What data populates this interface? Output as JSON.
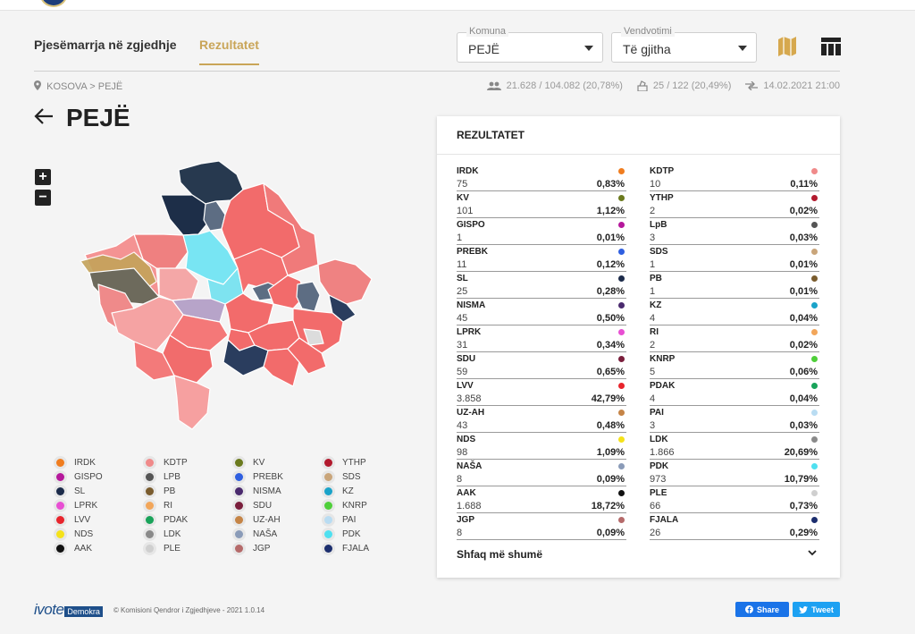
{
  "nav": {
    "tab_participation": "Pjesëmarrja në zgjedhje",
    "tab_results": "Rezultatet",
    "select_municipality": {
      "label": "Komuna",
      "value": "PEJË"
    },
    "select_polling": {
      "label": "Vendvotimi",
      "value": "Të gjitha"
    }
  },
  "breadcrumb": {
    "country": "KOSOVA",
    "separator": ">",
    "city": "PEJË"
  },
  "stats": {
    "voters": "21.628 / 104.082 (20,78%)",
    "stations": "25 / 122 (20,49%)",
    "updated": "14.02.2021 21:00"
  },
  "page": {
    "title": "PEJË"
  },
  "zoom": {
    "plus": "+",
    "minus": "−"
  },
  "legend": [
    {
      "name": "IRDK",
      "color": "#f07d1f"
    },
    {
      "name": "KDTP",
      "color": "#f08a8a"
    },
    {
      "name": "KV",
      "color": "#6b7a1e"
    },
    {
      "name": "YTHP",
      "color": "#b21a2e"
    },
    {
      "name": "GISPO",
      "color": "#b5189b"
    },
    {
      "name": "LPB",
      "color": "#555555"
    },
    {
      "name": "PREBK",
      "color": "#2f5fe0"
    },
    {
      "name": "SDS",
      "color": "#c9a57a"
    },
    {
      "name": "SL",
      "color": "#1c2b4a"
    },
    {
      "name": "PB",
      "color": "#7a5c2e"
    },
    {
      "name": "NISMA",
      "color": "#4a2a6e"
    },
    {
      "name": "KZ",
      "color": "#1aa3c9"
    },
    {
      "name": "LPRK",
      "color": "#e84fd3"
    },
    {
      "name": "RI",
      "color": "#f2a65a"
    },
    {
      "name": "SDU",
      "color": "#7a1e3c"
    },
    {
      "name": "KNRP",
      "color": "#4fcf3a"
    },
    {
      "name": "LVV",
      "color": "#e8242c"
    },
    {
      "name": "PDAK",
      "color": "#19a35a"
    },
    {
      "name": "UZ-AH",
      "color": "#c58446"
    },
    {
      "name": "PAI",
      "color": "#b9dcf2"
    },
    {
      "name": "NDS",
      "color": "#f5e21a"
    },
    {
      "name": "LDK",
      "color": "#8a8a8a"
    },
    {
      "name": "NAŠA",
      "color": "#8a9bb8"
    },
    {
      "name": "PDK",
      "color": "#4fe0f0"
    },
    {
      "name": "AAK",
      "color": "#111111"
    },
    {
      "name": "PLE",
      "color": "#cfcfcf"
    },
    {
      "name": "JGP",
      "color": "#b56a6a"
    },
    {
      "name": "FJALA",
      "color": "#1c2e6e"
    }
  ],
  "results": {
    "title": "REZULTATET",
    "left": [
      {
        "name": "IRDK",
        "votes": "75",
        "pct": "0,83%",
        "color": "#f07d1f"
      },
      {
        "name": "KV",
        "votes": "101",
        "pct": "1,12%",
        "color": "#6b7a1e"
      },
      {
        "name": "GISPO",
        "votes": "1",
        "pct": "0,01%",
        "color": "#b5189b"
      },
      {
        "name": "PREBK",
        "votes": "11",
        "pct": "0,12%",
        "color": "#2f5fe0"
      },
      {
        "name": "SL",
        "votes": "25",
        "pct": "0,28%",
        "color": "#1c2b4a"
      },
      {
        "name": "NISMA",
        "votes": "45",
        "pct": "0,50%",
        "color": "#4a2a6e"
      },
      {
        "name": "LPRK",
        "votes": "31",
        "pct": "0,34%",
        "color": "#e84fd3"
      },
      {
        "name": "SDU",
        "votes": "59",
        "pct": "0,65%",
        "color": "#7a1e3c"
      },
      {
        "name": "LVV",
        "votes": "3.858",
        "pct": "42,79%",
        "color": "#e8242c"
      },
      {
        "name": "UZ-AH",
        "votes": "43",
        "pct": "0,48%",
        "color": "#c58446"
      },
      {
        "name": "NDS",
        "votes": "98",
        "pct": "1,09%",
        "color": "#f5e21a"
      },
      {
        "name": "NAŠA",
        "votes": "8",
        "pct": "0,09%",
        "color": "#8a9bb8"
      },
      {
        "name": "AAK",
        "votes": "1.688",
        "pct": "18,72%",
        "color": "#111111"
      },
      {
        "name": "JGP",
        "votes": "8",
        "pct": "0,09%",
        "color": "#b56a6a"
      }
    ],
    "right": [
      {
        "name": "KDTP",
        "votes": "10",
        "pct": "0,11%",
        "color": "#f08a8a"
      },
      {
        "name": "YTHP",
        "votes": "2",
        "pct": "0,02%",
        "color": "#b21a2e"
      },
      {
        "name": "LpB",
        "votes": "3",
        "pct": "0,03%",
        "color": "#555555"
      },
      {
        "name": "SDS",
        "votes": "1",
        "pct": "0,01%",
        "color": "#c9a57a"
      },
      {
        "name": "PB",
        "votes": "1",
        "pct": "0,01%",
        "color": "#7a5c2e"
      },
      {
        "name": "KZ",
        "votes": "4",
        "pct": "0,04%",
        "color": "#1aa3c9"
      },
      {
        "name": "RI",
        "votes": "2",
        "pct": "0,02%",
        "color": "#f2a65a"
      },
      {
        "name": "KNRP",
        "votes": "5",
        "pct": "0,06%",
        "color": "#4fcf3a"
      },
      {
        "name": "PDAK",
        "votes": "4",
        "pct": "0,04%",
        "color": "#19a35a"
      },
      {
        "name": "PAI",
        "votes": "3",
        "pct": "0,03%",
        "color": "#b9dcf2"
      },
      {
        "name": "LDK",
        "votes": "1.866",
        "pct": "20,69%",
        "color": "#8a8a8a"
      },
      {
        "name": "PDK",
        "votes": "973",
        "pct": "10,79%",
        "color": "#4fe0f0"
      },
      {
        "name": "PLE",
        "votes": "66",
        "pct": "0,73%",
        "color": "#cfcfcf"
      },
      {
        "name": "FJALA",
        "votes": "26",
        "pct": "0,29%",
        "color": "#1c2e6e"
      }
    ],
    "show_more": "Shfaq më shumë"
  },
  "footer": {
    "brand": "ivote",
    "brand_tag": "Demokra",
    "copyright": "© Komisioni Qendror i Zgjedhjeve - 2021 1.0.14",
    "share_fb": "Share",
    "share_tw": "Tweet"
  },
  "colors": {
    "accent": "#c9a558",
    "lvv": "#f26b6b",
    "ldk_dark": "#2a3d5e",
    "pdk_light": "#79e3f2"
  }
}
